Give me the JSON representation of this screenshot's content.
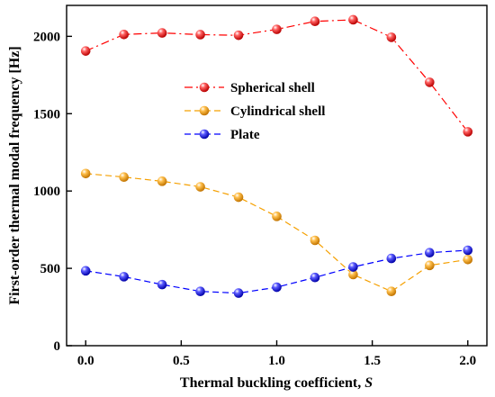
{
  "chart_data": {
    "type": "line",
    "x": [
      0.0,
      0.2,
      0.4,
      0.6,
      0.8,
      1.0,
      1.2,
      1.4,
      1.6,
      1.8,
      2.0
    ],
    "series": [
      {
        "name": "Spherical shell",
        "color": "#ff0000",
        "line_style": "dash-dot",
        "values": [
          1905,
          2012,
          2022,
          2011,
          2007,
          2045,
          2097,
          2107,
          1994,
          1703,
          1383
        ]
      },
      {
        "name": "Cylindrical shell",
        "color": "#f5a000",
        "line_style": "dashed",
        "values": [
          1113,
          1090,
          1063,
          1027,
          960,
          836,
          681,
          460,
          351,
          519,
          557
        ]
      },
      {
        "name": "Plate",
        "color": "#0000ff",
        "line_style": "dashed",
        "values": [
          484,
          446,
          395,
          351,
          340,
          378,
          441,
          509,
          564,
          601,
          617
        ]
      }
    ],
    "xlabel_text": "Thermal buckling coefficient, ",
    "xlabel_symbol": "S",
    "ylabel": "First-order thermal modal frequency [Hz]",
    "xlim": [
      -0.1,
      2.1
    ],
    "ylim": [
      0,
      2200
    ],
    "xticks": [
      0.0,
      0.5,
      1.0,
      1.5,
      2.0
    ],
    "xtick_labels": [
      "0.0",
      "0.5",
      "1.0",
      "1.5",
      "2.0"
    ],
    "yticks": [
      0,
      500,
      1000,
      1500,
      2000
    ],
    "ytick_labels": [
      "0",
      "500",
      "1000",
      "1500",
      "2000"
    ],
    "grid": false,
    "legend_position": "upper-center",
    "marker": "sphere"
  }
}
